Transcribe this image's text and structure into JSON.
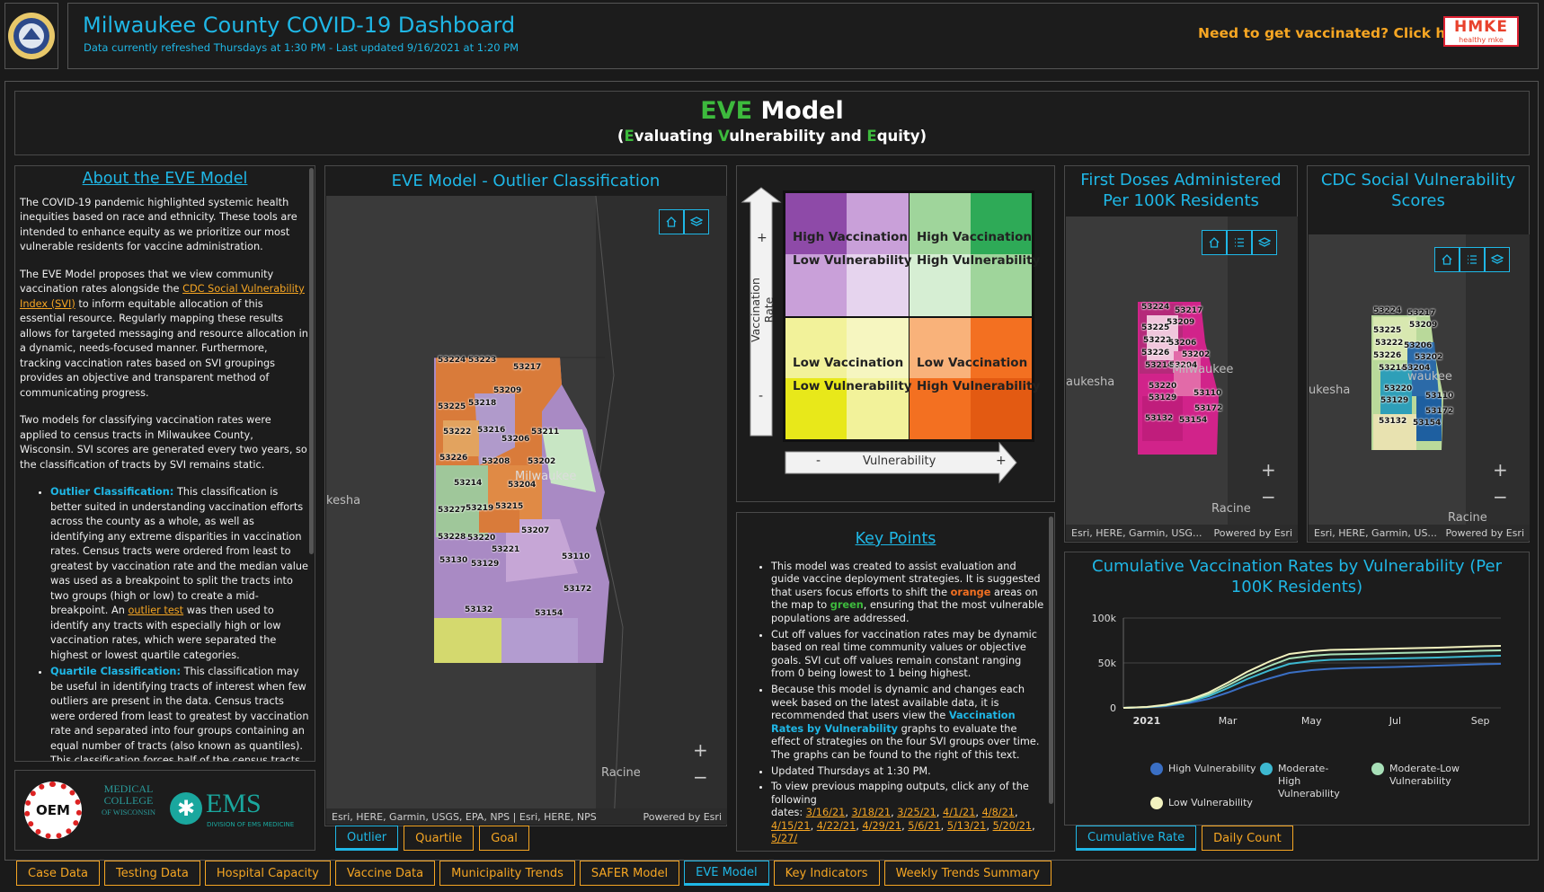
{
  "header": {
    "title": "Milwaukee County COVID-19 Dashboard",
    "subtitle": "Data currently refreshed Thursdays at 1:30 PM - Last updated 9/16/2021 at 1:20 PM",
    "vaccine_cta": "Need to get vaccinated? Click here:",
    "hmke_logo_text": "HMKE",
    "hmke_tagline": "healthy mke"
  },
  "banner": {
    "eve_word": "EVE",
    "model_word": "Model",
    "paren_open": "(",
    "e_letter": "E",
    "e_rest": "valuating ",
    "v_letter": "V",
    "v_rest": "ulnerability and ",
    "q_letter": "E",
    "q_rest": "quity)"
  },
  "about": {
    "title": "About the EVE Model",
    "p1": "The COVID-19 pandemic highlighted systemic health inequities based on race and ethnicity. These tools are intended to enhance equity as we prioritize our most vulnerable residents for vaccine administration.",
    "p2_a": "The EVE Model proposes that we view community vaccination rates alongside the ",
    "p2_link": "CDC Social Vulnerability Index (SVI)",
    "p2_b": " to inform equitable allocation of this essential resource. Regularly mapping these results allows for targeted messaging and resource allocation in a dynamic, needs-focused manner. Furthermore, tracking vaccination rates based on SVI groupings provides an objective and transparent method of communicating progress.",
    "p3": "Two models for classifying vaccination rates were applied to census tracts in Milwaukee County, Wisconsin. SVI scores are generated every two years, so the classification of tracts by SVI remains static.",
    "b1_head": "Outlier Classification:",
    "b1_a": " This classification is better suited in understanding vaccination efforts across the county as a whole, as well as identifying any extreme disparities in vaccination rates. Census tracts were ordered from least to greatest by vaccination rate and the median value was used as a breakpoint to split the tracts into two groups (high or low) to create a mid-breakpoint. An ",
    "b1_link": "outlier test",
    "b1_b": " was then used to identify any tracts with especially high or low vaccination rates, which were separated the highest or lowest quartile categories.",
    "b2_head": "Quartile Classification:",
    "b2_a": " This classification may be useful in identifying tracts of interest when few outliers are present in the data. Census tracts were ordered from least to greatest by vaccination rate and separated into four groups containing an equal number of tracts (also known as quantiles). This classification forces half of the census tracts into the highest and lowest categories based on"
  },
  "logos": {
    "oem": "OEM",
    "mcw_line1": "MEDICAL",
    "mcw_line2": "COLLEGE",
    "mcw_line3": "OF WISCONSIN",
    "ems": "EMS",
    "ems_sub": "DIVISION OF EMS MEDICINE"
  },
  "outlier_map": {
    "title": "EVE Model - Outlier Classification",
    "attribution": "Esri, HERE, Garmin, USGS, EPA, NPS | Esri, HERE, NPS",
    "powered": "Powered by Esri",
    "city_left": "kesha",
    "city_mke": "Milwaukee",
    "city_racine": "Racine",
    "zips": [
      "53224",
      "53223",
      "53217",
      "53209",
      "53225",
      "53218",
      "53222",
      "53216",
      "53211",
      "53206",
      "53226",
      "53208",
      "53202",
      "53214",
      "53204",
      "53227",
      "53219",
      "53215",
      "53228",
      "53220",
      "53207",
      "53221",
      "53110",
      "53130",
      "53129",
      "53172",
      "53132",
      "53154"
    ],
    "tabs": [
      "Outlier",
      "Quartile",
      "Goal"
    ],
    "active_tab": "Outlier"
  },
  "matrix": {
    "y_axis": "Vaccination Rate",
    "x_axis": "Vulnerability",
    "plus": "+",
    "minus": "-",
    "q_tl_1": "High Vaccination",
    "q_tl_2": "Low Vulnerability",
    "q_tr_1": "High Vaccination",
    "q_tr_2": "High Vulnerability",
    "q_bl_1": "Low Vaccination",
    "q_bl_2": "Low Vulnerability",
    "q_br_1": "Low Vaccination",
    "q_br_2": "High Vulnerability",
    "colors": {
      "purple": "#8e4aa8",
      "lilac": "#c9a0d9",
      "green": "#2eaa57",
      "lightgreen": "#9fd59b",
      "yellow": "#e8e81a",
      "paleyellow": "#f2f29a",
      "orange": "#f37021",
      "lightorange": "#f9b27a"
    }
  },
  "key_points": {
    "title": "Key Points",
    "k1_a": "This model was created to assist evaluation and guide vaccine deployment strategies. It is suggested that users focus efforts to shift the ",
    "k1_orange": "orange",
    "k1_b": " areas on the map to ",
    "k1_green": "green",
    "k1_c": ", ensuring that the most vulnerable populations are addressed.",
    "k2": "Cut off values for vaccination rates may be dynamic based on real time community values or objective goals. SVI cut off values remain constant ranging from 0 being lowest to 1 being highest.",
    "k3_a": "Because this model is dynamic and changes each week based on the latest available data, it is recommended that users view the ",
    "k3_link": "Vaccination Rates by Vulnerability",
    "k3_b": " graphs to evaluate the effect of strategies on the four SVI groups over time. The graphs can be found to the right of this text.",
    "k4": "Updated Thursdays at 1:30 PM.",
    "k5": "To view previous mapping outputs, click any of the following",
    "k5_dates_label": "dates: ",
    "dates": [
      "3/16/21",
      "3/18/21",
      "3/25/21",
      "4/1/21",
      "4/8/21",
      "4/15/21",
      "4/22/21",
      "4/29/21",
      "5/6/21",
      "5/13/21",
      "5/20/21",
      "5/27/"
    ]
  },
  "first_doses": {
    "title": "First Doses Administered Per 100K Residents",
    "attribution": "Esri, HERE, Garmin, USG...",
    "powered": "Powered by Esri",
    "city_left": "aukesha",
    "city_mke": "Milwaukee",
    "city_racine": "Racine",
    "zips": [
      "53224",
      "53217",
      "53209",
      "53225",
      "53222",
      "53206",
      "53226",
      "53202",
      "53214",
      "53204",
      "53220",
      "53110",
      "53129",
      "53172",
      "53132",
      "53154"
    ]
  },
  "svi_map": {
    "title": "CDC Social Vulnerability Scores",
    "attribution": "Esri, HERE, Garmin, US...",
    "powered": "Powered by Esri",
    "city_left": "ukesha",
    "city_mke": "waukee",
    "city_racine": "Racine",
    "zips": [
      "53224",
      "53217",
      "53209",
      "53225",
      "53222",
      "53206",
      "53226",
      "53202",
      "53214",
      "53204",
      "53220",
      "53110",
      "53129",
      "53172",
      "53132",
      "53154"
    ]
  },
  "cum_chart": {
    "title": "Cumulative Vaccination Rates by Vulnerability (Per 100K Residents)",
    "tabs": [
      "Cumulative Rate",
      "Daily Count"
    ],
    "active_tab": "Cumulative Rate"
  },
  "chart_data": {
    "type": "line",
    "title": "Cumulative Vaccination Rates by Vulnerability (Per 100K Residents)",
    "xlabel": "",
    "ylabel": "",
    "x_ticks": [
      "2021",
      "Mar",
      "May",
      "Jul",
      "Sep"
    ],
    "y_ticks": [
      "0",
      "50k",
      "100k"
    ],
    "ylim": [
      0,
      100000
    ],
    "x": [
      "2020-12-15",
      "2021-01-01",
      "2021-01-15",
      "2021-02-01",
      "2021-02-15",
      "2021-03-01",
      "2021-03-15",
      "2021-04-01",
      "2021-04-15",
      "2021-05-01",
      "2021-05-15",
      "2021-06-01",
      "2021-07-01",
      "2021-08-01",
      "2021-09-01",
      "2021-09-16"
    ],
    "series": [
      {
        "name": "Low Vulnerability",
        "color": "#f3f3c0",
        "values": [
          0,
          1000,
          3500,
          9000,
          17000,
          28000,
          40000,
          52000,
          60000,
          63000,
          64500,
          65000,
          66000,
          67000,
          68500,
          69000
        ]
      },
      {
        "name": "Moderate-Low Vulnerability",
        "color": "#a8e0b8",
        "values": [
          0,
          900,
          3000,
          8000,
          15000,
          25000,
          36000,
          47000,
          55000,
          58000,
          59500,
          60000,
          61000,
          62000,
          63500,
          64000
        ]
      },
      {
        "name": "Moderate-High Vulnerability",
        "color": "#3db8d0",
        "values": [
          0,
          800,
          2600,
          7000,
          13000,
          22000,
          32000,
          42000,
          49000,
          52000,
          53500,
          54000,
          55000,
          56000,
          57500,
          58000
        ]
      },
      {
        "name": "High Vulnerability",
        "color": "#3a6fc4",
        "values": [
          0,
          600,
          2000,
          5500,
          10000,
          17000,
          25000,
          33000,
          39000,
          42000,
          43500,
          44500,
          45500,
          47000,
          48500,
          49000
        ]
      }
    ],
    "legend": [
      "High Vulnerability",
      "Moderate-High Vulnerability",
      "Moderate-Low Vulnerability",
      "Low Vulnerability"
    ]
  },
  "bottom_tabs": [
    "Case Data",
    "Testing Data",
    "Hospital Capacity",
    "Vaccine Data",
    "Municipality Trends",
    "SAFER Model",
    "EVE Model",
    "Key Indicators",
    "Weekly Trends Summary"
  ],
  "active_bottom_tab": "EVE Model",
  "colors": {
    "accent": "#1fb7e6",
    "orange": "#f6a623",
    "eve_green": "#3dba3d",
    "panel_bg": "#1c1c1c"
  }
}
